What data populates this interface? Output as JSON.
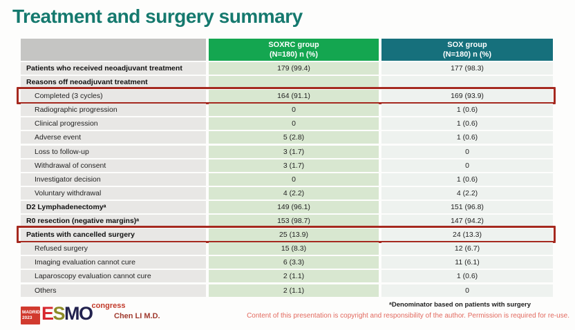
{
  "slide": {
    "title": "Treatment and surgery summary"
  },
  "table": {
    "columns": [
      {
        "label": ""
      },
      {
        "label": "SOXRC group",
        "sublabel": "(N=180)  n (%)"
      },
      {
        "label": "SOX group",
        "sublabel": "(N=180)  n (%)"
      }
    ],
    "rows": [
      {
        "label": "Patients who received neoadjuvant treatment",
        "soxrc": "179 (99.4)",
        "sox": "177 (98.3)",
        "bold": true,
        "indent": false,
        "highlighted": false
      },
      {
        "label": "Reasons off neoadjuvant treatment",
        "soxrc": "",
        "sox": "",
        "bold": true,
        "indent": false,
        "highlighted": false
      },
      {
        "label": "Completed (3 cycles)",
        "soxrc": "164 (91.1)",
        "sox": "169 (93.9)",
        "bold": false,
        "indent": true,
        "highlighted": true
      },
      {
        "label": "Radiographic progression",
        "soxrc": "0",
        "sox": "1 (0.6)",
        "bold": false,
        "indent": true,
        "highlighted": false
      },
      {
        "label": "Clinical progression",
        "soxrc": "0",
        "sox": "1 (0.6)",
        "bold": false,
        "indent": true,
        "highlighted": false
      },
      {
        "label": "Adverse event",
        "soxrc": "5 (2.8)",
        "sox": "1 (0.6)",
        "bold": false,
        "indent": true,
        "highlighted": false
      },
      {
        "label": "Loss to follow-up",
        "soxrc": "3 (1.7)",
        "sox": "0",
        "bold": false,
        "indent": true,
        "highlighted": false
      },
      {
        "label": "Withdrawal of consent",
        "soxrc": "3 (1.7)",
        "sox": "0",
        "bold": false,
        "indent": true,
        "highlighted": false
      },
      {
        "label": "Investigator decision",
        "soxrc": "0",
        "sox": "1 (0.6)",
        "bold": false,
        "indent": true,
        "highlighted": false
      },
      {
        "label": "Voluntary withdrawal",
        "soxrc": "4 (2.2)",
        "sox": "4 (2.2)",
        "bold": false,
        "indent": true,
        "highlighted": false
      },
      {
        "label": "D2 Lymphadenectomyᵃ",
        "soxrc": "149 (96.1)",
        "sox": "151 (96.8)",
        "bold": true,
        "indent": false,
        "highlighted": false
      },
      {
        "label": "R0 resection (negative margins)ᵃ",
        "soxrc": "153 (98.7)",
        "sox": "147 (94.2)",
        "bold": true,
        "indent": false,
        "highlighted": false
      },
      {
        "label": "Patients with cancelled surgery",
        "soxrc": "25 (13.9)",
        "sox": "24 (13.3)",
        "bold": true,
        "indent": false,
        "highlighted": true
      },
      {
        "label": "Refused surgery",
        "soxrc": "15 (8.3)",
        "sox": "12 (6.7)",
        "bold": false,
        "indent": true,
        "highlighted": false
      },
      {
        "label": "Imaging evaluation cannot cure",
        "soxrc": "6 (3.3)",
        "sox": "11 (6.1)",
        "bold": false,
        "indent": true,
        "highlighted": false
      },
      {
        "label": "Laparoscopy evaluation cannot cure",
        "soxrc": "2 (1.1)",
        "sox": "1 (0.6)",
        "bold": false,
        "indent": true,
        "highlighted": false
      },
      {
        "label": "Others",
        "soxrc": "2 (1.1)",
        "sox": "0",
        "bold": false,
        "indent": true,
        "highlighted": false
      }
    ]
  },
  "footer": {
    "footnote": "ᵃDenominator based on patients with surgery",
    "copyright": "Content of this presentation is copyright and responsibility of the author. Permission is required for re-use.",
    "author": "Chen LI M.D.",
    "logo": {
      "location": "MADRID",
      "year": "2023",
      "letters": [
        "E",
        "S",
        "M",
        "O"
      ],
      "congress": "congress"
    }
  },
  "colors": {
    "title": "#15796e",
    "soxrc_header_bg": "#14a650",
    "sox_header_bg": "#16707c",
    "highlight_border": "#a5291f"
  }
}
